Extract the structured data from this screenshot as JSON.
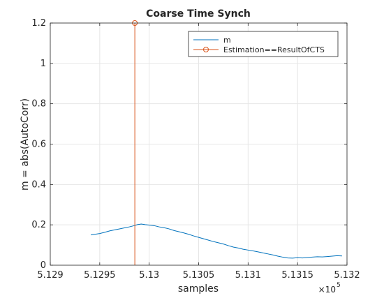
{
  "chart_data": {
    "type": "line",
    "title": "Coarse Time Synch",
    "xlabel": "samples",
    "ylabel": "m = abs(AutoCorr)",
    "x_exponent_label": "×10",
    "x_exponent_power": "5",
    "xlim": [
      5.129,
      5.132
    ],
    "ylim": [
      0,
      1.2
    ],
    "x_ticks": [
      5.129,
      5.1295,
      5.13,
      5.1305,
      5.131,
      5.1315,
      5.132
    ],
    "x_tick_labels": [
      "5.129",
      "5.1295",
      "5.13",
      "5.1305",
      "5.131",
      "5.1315",
      "5.132"
    ],
    "y_ticks": [
      0,
      0.2,
      0.4,
      0.6,
      0.8,
      1,
      1.2
    ],
    "y_tick_labels": [
      "0",
      "0.2",
      "0.4",
      "0.6",
      "0.8",
      "1",
      "1.2"
    ],
    "grid": true,
    "legend_position": "top-right",
    "colors": {
      "m": "#0072bd",
      "estimation": "#d95319",
      "grid": "#e6e6e6",
      "axis": "#262626"
    },
    "series": [
      {
        "name": "m",
        "style": "line",
        "x": [
          5.12941,
          5.12945,
          5.1295,
          5.12955,
          5.1296,
          5.12965,
          5.1297,
          5.12975,
          5.1298,
          5.12985,
          5.12988,
          5.12992,
          5.12996,
          5.13,
          5.13005,
          5.1301,
          5.13015,
          5.1302,
          5.13025,
          5.1303,
          5.13035,
          5.1304,
          5.13045,
          5.1305,
          5.13055,
          5.1306,
          5.13065,
          5.1307,
          5.13075,
          5.1308,
          5.13085,
          5.1309,
          5.13095,
          5.131,
          5.13105,
          5.1311,
          5.13115,
          5.1312,
          5.13125,
          5.1313,
          5.13135,
          5.1314,
          5.13145,
          5.1315,
          5.13155,
          5.1316,
          5.13165,
          5.1317,
          5.13175,
          5.1318,
          5.13185,
          5.1319,
          5.13195
        ],
        "y": [
          0.15,
          0.153,
          0.157,
          0.163,
          0.17,
          0.175,
          0.18,
          0.185,
          0.19,
          0.196,
          0.201,
          0.204,
          0.201,
          0.199,
          0.196,
          0.19,
          0.186,
          0.18,
          0.172,
          0.166,
          0.16,
          0.153,
          0.145,
          0.138,
          0.131,
          0.124,
          0.117,
          0.111,
          0.105,
          0.097,
          0.09,
          0.085,
          0.079,
          0.075,
          0.071,
          0.066,
          0.061,
          0.056,
          0.051,
          0.045,
          0.04,
          0.036,
          0.035,
          0.037,
          0.036,
          0.038,
          0.04,
          0.042,
          0.041,
          0.043,
          0.045,
          0.047,
          0.046
        ]
      },
      {
        "name": "Estimation==ResultOfCTS",
        "style": "stem",
        "x": [
          5.129855
        ],
        "y": [
          1.2
        ]
      }
    ]
  }
}
